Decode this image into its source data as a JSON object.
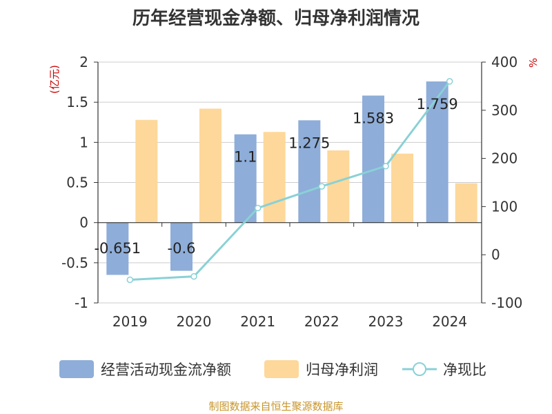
{
  "chart_data": {
    "type": "bar+line",
    "title": "历年经营现金净额、归母净利润情况",
    "categories": [
      "2019",
      "2020",
      "2021",
      "2022",
      "2023",
      "2024"
    ],
    "left_axis": {
      "label": "(亿元)",
      "ylim": [
        -1,
        2
      ],
      "ticks": [
        "-1",
        "-0.5",
        "0",
        "0.5",
        "1",
        "1.5",
        "2"
      ],
      "tick_values": [
        -1,
        -0.5,
        0,
        0.5,
        1,
        1.5,
        2
      ]
    },
    "right_axis": {
      "label": "%",
      "ylim": [
        -100,
        400
      ],
      "ticks": [
        "-100",
        "0",
        "100",
        "200",
        "300",
        "400"
      ],
      "tick_values": [
        -100,
        0,
        100,
        200,
        300,
        400
      ]
    },
    "series": [
      {
        "name": "经营活动现金流净额",
        "kind": "bar",
        "axis": "left",
        "color": "#8eadd9",
        "values": [
          -0.651,
          -0.6,
          1.1,
          1.275,
          1.583,
          1.759
        ],
        "labels": [
          "-0.651",
          "-0.6",
          "1.1",
          "1.275",
          "1.583",
          "1.759"
        ]
      },
      {
        "name": "归母净利润",
        "kind": "bar",
        "axis": "left",
        "color": "#fdd89a",
        "values": [
          1.28,
          1.42,
          1.13,
          0.9,
          0.86,
          0.49
        ]
      },
      {
        "name": "净现比",
        "kind": "line",
        "axis": "right",
        "color": "#89d1d6",
        "values": [
          -52,
          -45,
          97,
          142,
          184,
          360
        ]
      }
    ],
    "legend_position": "bottom",
    "grid": true
  },
  "colors": {
    "left_label": "#cc0000",
    "right_label": "#cc0000",
    "source": "#c8952a",
    "axis": "#333333",
    "grid": "#cccccc"
  },
  "footer": {
    "source": "制图数据来自恒生聚源数据库"
  }
}
